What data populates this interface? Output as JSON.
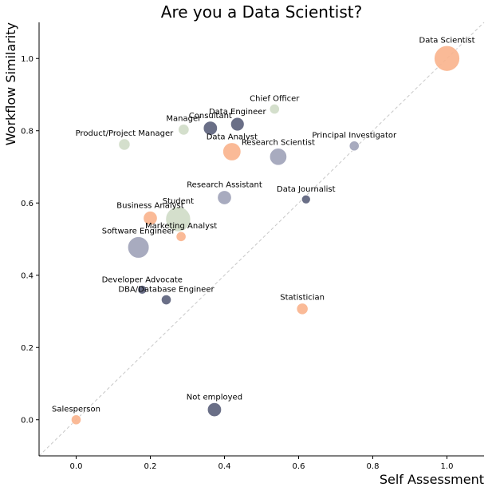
{
  "chart_data": {
    "type": "scatter",
    "title": "Are you a Data Scientist?",
    "xlabel": "Self Assessment",
    "ylabel": "Workflow Similarity",
    "xlim": [
      -0.1,
      1.1
    ],
    "ylim": [
      -0.1,
      1.1
    ],
    "xticks": [
      "0.0",
      "0.2",
      "0.4",
      "0.6",
      "0.8",
      "1.0"
    ],
    "yticks": [
      "0.0",
      "0.2",
      "0.4",
      "0.6",
      "0.8",
      "1.0"
    ],
    "grid": false,
    "diagonal_reference_line": true,
    "colors": {
      "orange": "#f9b28c",
      "slate": "#9fa2b8",
      "green": "#cfdcc6",
      "navy": "#5a5f7a"
    },
    "points": [
      {
        "label": "Data Scientist",
        "x": 1.0,
        "y": 1.0,
        "size": 1.0,
        "color": "orange"
      },
      {
        "label": "Chief Officer",
        "x": 0.535,
        "y": 0.86,
        "size": 0.15,
        "color": "green"
      },
      {
        "label": "Data Engineer",
        "x": 0.435,
        "y": 0.818,
        "size": 0.28,
        "color": "navy"
      },
      {
        "label": "Consultant",
        "x": 0.362,
        "y": 0.807,
        "size": 0.3,
        "color": "navy"
      },
      {
        "label": "Manager",
        "x": 0.29,
        "y": 0.803,
        "size": 0.18,
        "color": "green"
      },
      {
        "label": "Product/Project Manager",
        "x": 0.13,
        "y": 0.762,
        "size": 0.2,
        "color": "green"
      },
      {
        "label": "Data Analyst",
        "x": 0.42,
        "y": 0.742,
        "size": 0.5,
        "color": "orange"
      },
      {
        "label": "Research Scientist",
        "x": 0.545,
        "y": 0.728,
        "size": 0.45,
        "color": "slate"
      },
      {
        "label": "Principal Investigator",
        "x": 0.75,
        "y": 0.758,
        "size": 0.15,
        "color": "slate"
      },
      {
        "label": "Research Assistant",
        "x": 0.4,
        "y": 0.615,
        "size": 0.3,
        "color": "slate"
      },
      {
        "label": "Data Journalist",
        "x": 0.62,
        "y": 0.61,
        "size": 0.12,
        "color": "navy"
      },
      {
        "label": "Student",
        "x": 0.275,
        "y": 0.555,
        "size": 0.95,
        "color": "green"
      },
      {
        "label": "Business Analyst",
        "x": 0.2,
        "y": 0.558,
        "size": 0.3,
        "color": "orange"
      },
      {
        "label": "Marketing Analyst",
        "x": 0.283,
        "y": 0.507,
        "size": 0.15,
        "color": "orange"
      },
      {
        "label": "Software Engineer",
        "x": 0.168,
        "y": 0.477,
        "size": 0.7,
        "color": "slate"
      },
      {
        "label": "Developer Advocate",
        "x": 0.178,
        "y": 0.36,
        "size": 0.12,
        "color": "navy"
      },
      {
        "label": "DBA/Database Engineer",
        "x": 0.243,
        "y": 0.332,
        "size": 0.15,
        "color": "navy"
      },
      {
        "label": "Statistician",
        "x": 0.61,
        "y": 0.307,
        "size": 0.2,
        "color": "orange"
      },
      {
        "label": "Not employed",
        "x": 0.373,
        "y": 0.028,
        "size": 0.3,
        "color": "navy"
      },
      {
        "label": "Salesperson",
        "x": 0.0,
        "y": 0.0,
        "size": 0.15,
        "color": "orange"
      }
    ]
  }
}
